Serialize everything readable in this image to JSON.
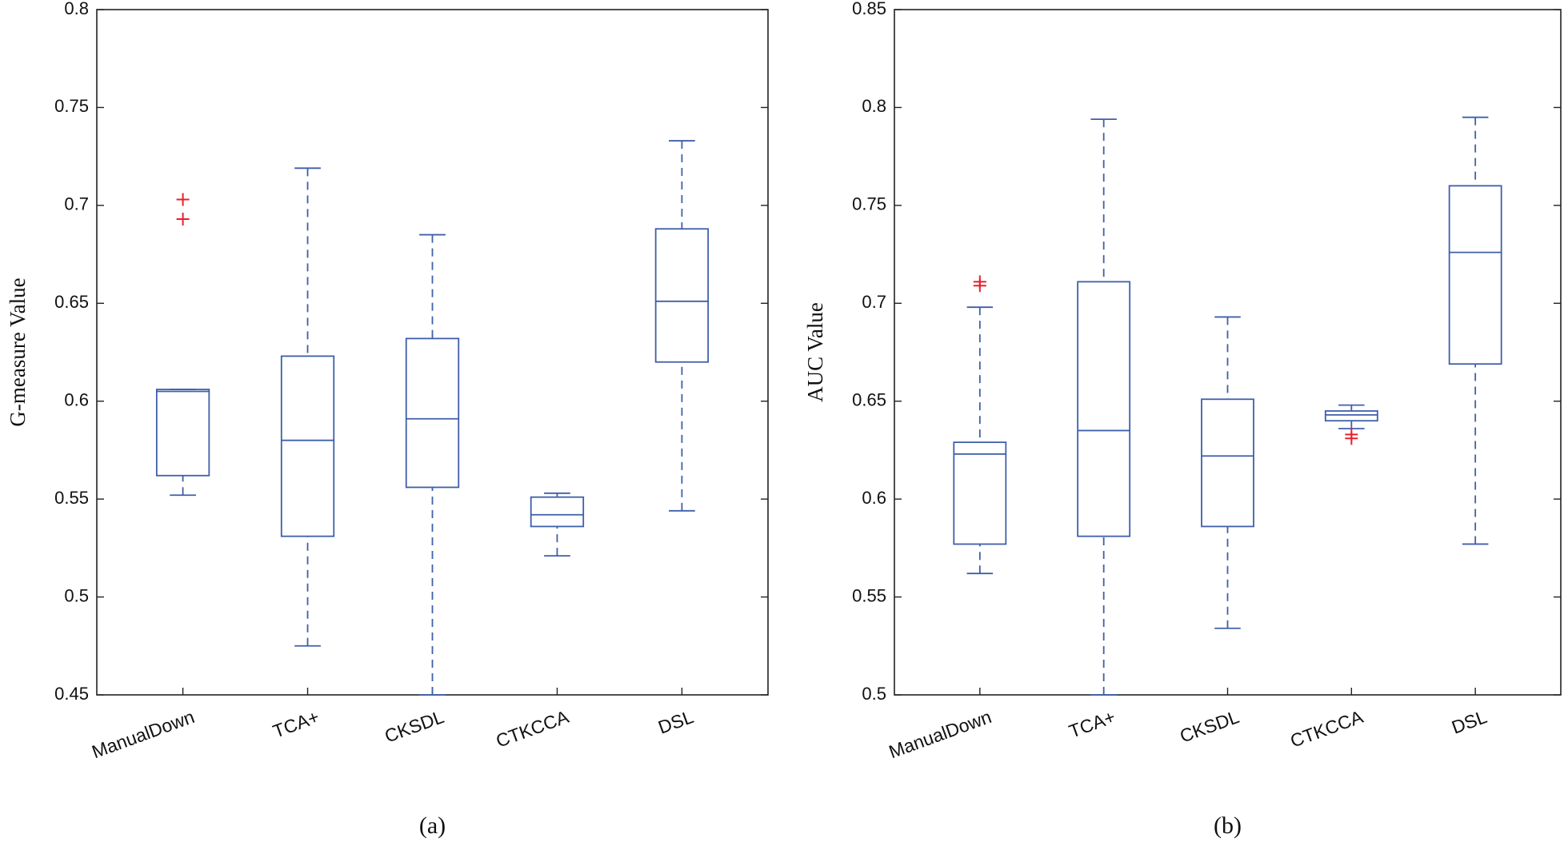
{
  "chart_data": [
    {
      "type": "box",
      "y_label": "G-measure Value",
      "caption": "(a)",
      "categories": [
        "ManualDown",
        "TCA+",
        "CKSDL",
        "CTKCCA",
        "DSL"
      ],
      "box_color": "#3f5faa",
      "outlier_color": "#e8212b",
      "ylim": [
        0.45,
        0.8
      ],
      "yticks": [
        0.45,
        0.5,
        0.55,
        0.6,
        0.65,
        0.7,
        0.75,
        0.8
      ],
      "boxes": [
        {
          "whisker_low": 0.552,
          "q1": 0.562,
          "median": 0.605,
          "q3": 0.606,
          "whisker_high": 0.606,
          "outliers": [
            0.703,
            0.693
          ]
        },
        {
          "whisker_low": 0.475,
          "q1": 0.531,
          "median": 0.58,
          "q3": 0.623,
          "whisker_high": 0.719,
          "outliers": []
        },
        {
          "whisker_low": 0.45,
          "q1": 0.556,
          "median": 0.591,
          "q3": 0.632,
          "whisker_high": 0.685,
          "outliers": []
        },
        {
          "whisker_low": 0.521,
          "q1": 0.536,
          "median": 0.542,
          "q3": 0.551,
          "whisker_high": 0.553,
          "outliers": []
        },
        {
          "whisker_low": 0.544,
          "q1": 0.62,
          "median": 0.651,
          "q3": 0.688,
          "whisker_high": 0.733,
          "outliers": []
        }
      ]
    },
    {
      "type": "box",
      "y_label": "AUC Value",
      "caption": "(b)",
      "categories": [
        "ManualDown",
        "TCA+",
        "CKSDL",
        "CTKCCA",
        "DSL"
      ],
      "box_color": "#3f5faa",
      "outlier_color": "#e8212b",
      "ylim": [
        0.5,
        0.85
      ],
      "yticks": [
        0.5,
        0.55,
        0.6,
        0.65,
        0.7,
        0.75,
        0.8,
        0.85
      ],
      "boxes": [
        {
          "whisker_low": 0.562,
          "q1": 0.577,
          "median": 0.623,
          "q3": 0.629,
          "whisker_high": 0.698,
          "outliers": [
            0.711,
            0.709
          ]
        },
        {
          "whisker_low": 0.5,
          "q1": 0.581,
          "median": 0.635,
          "q3": 0.711,
          "whisker_high": 0.794,
          "outliers": []
        },
        {
          "whisker_low": 0.534,
          "q1": 0.586,
          "median": 0.622,
          "q3": 0.651,
          "whisker_high": 0.693,
          "outliers": []
        },
        {
          "whisker_low": 0.636,
          "q1": 0.64,
          "median": 0.643,
          "q3": 0.645,
          "whisker_high": 0.648,
          "outliers": [
            0.633,
            0.631
          ]
        },
        {
          "whisker_low": 0.577,
          "q1": 0.669,
          "median": 0.726,
          "q3": 0.76,
          "whisker_high": 0.795,
          "outliers": []
        }
      ]
    }
  ]
}
